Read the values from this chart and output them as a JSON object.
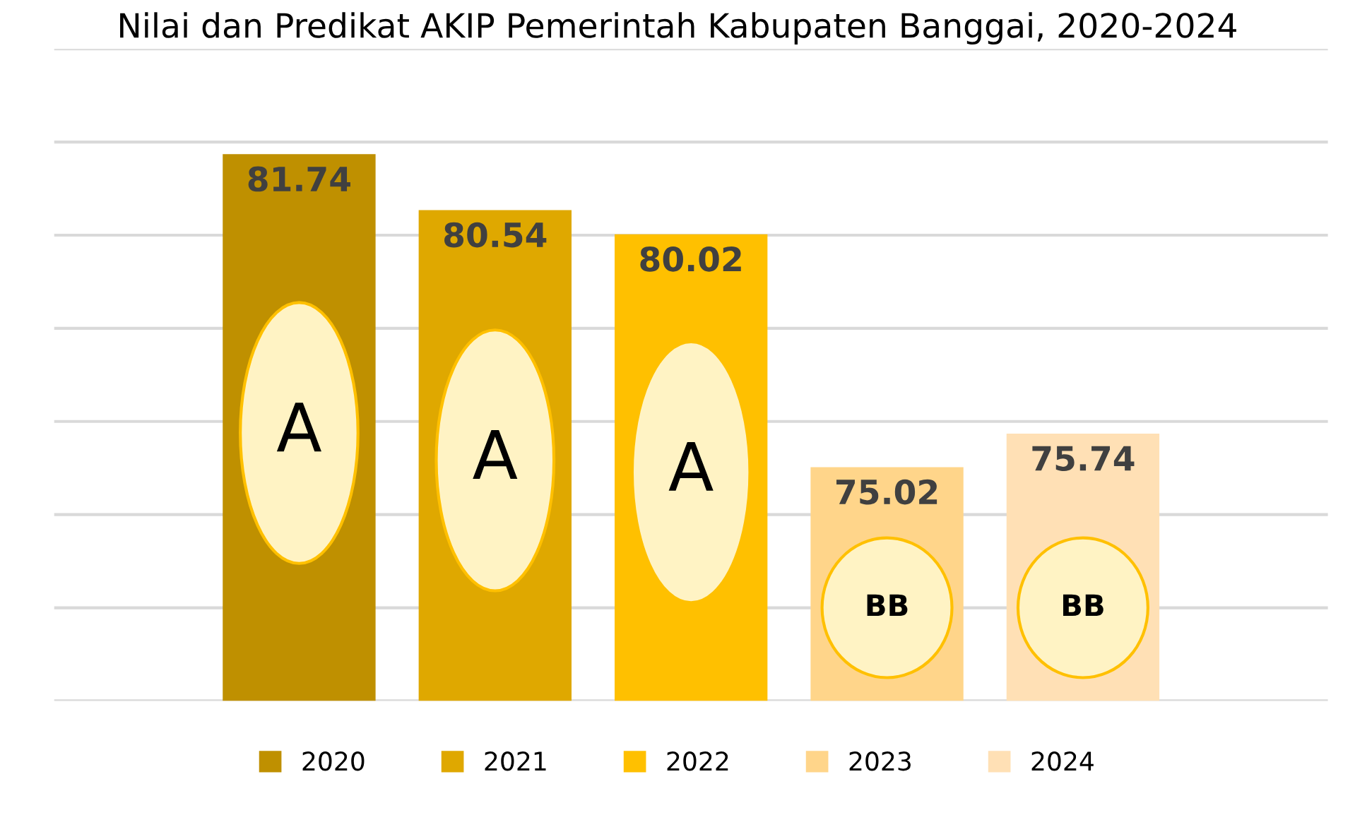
{
  "chart_data": {
    "type": "bar",
    "title": "Nilai dan Predikat AKIP Pemerintah Kabupaten Banggai, 2020-2024",
    "categories": [
      null
    ],
    "series": [
      {
        "name": "2020",
        "color": "#bf9000",
        "values": [
          81.74
        ]
      },
      {
        "name": "2021",
        "color": "#dfa800",
        "values": [
          80.54
        ]
      },
      {
        "name": "2022",
        "color": "#ffc000",
        "values": [
          80.02
        ]
      },
      {
        "name": "2023",
        "color": "#ffd58a",
        "values": [
          75.02
        ]
      },
      {
        "name": "2024",
        "color": "#ffe0b5",
        "values": [
          75.74
        ]
      }
    ],
    "annotations": [
      "A",
      "A",
      "A",
      "BB",
      "BB"
    ],
    "ylim": [
      70,
      84
    ],
    "yticks": [
      {
        "value": 70,
        "label": null
      },
      {
        "value": 72,
        "label": null
      },
      {
        "value": 74,
        "label": null
      },
      {
        "value": 76,
        "label": null
      },
      {
        "value": 78,
        "label": null
      },
      {
        "value": 80,
        "label": null
      },
      {
        "value": 82,
        "label": null
      },
      {
        "value": 84,
        "label": null
      }
    ],
    "grid": "y",
    "legend": "bottom",
    "data_labels": true
  }
}
